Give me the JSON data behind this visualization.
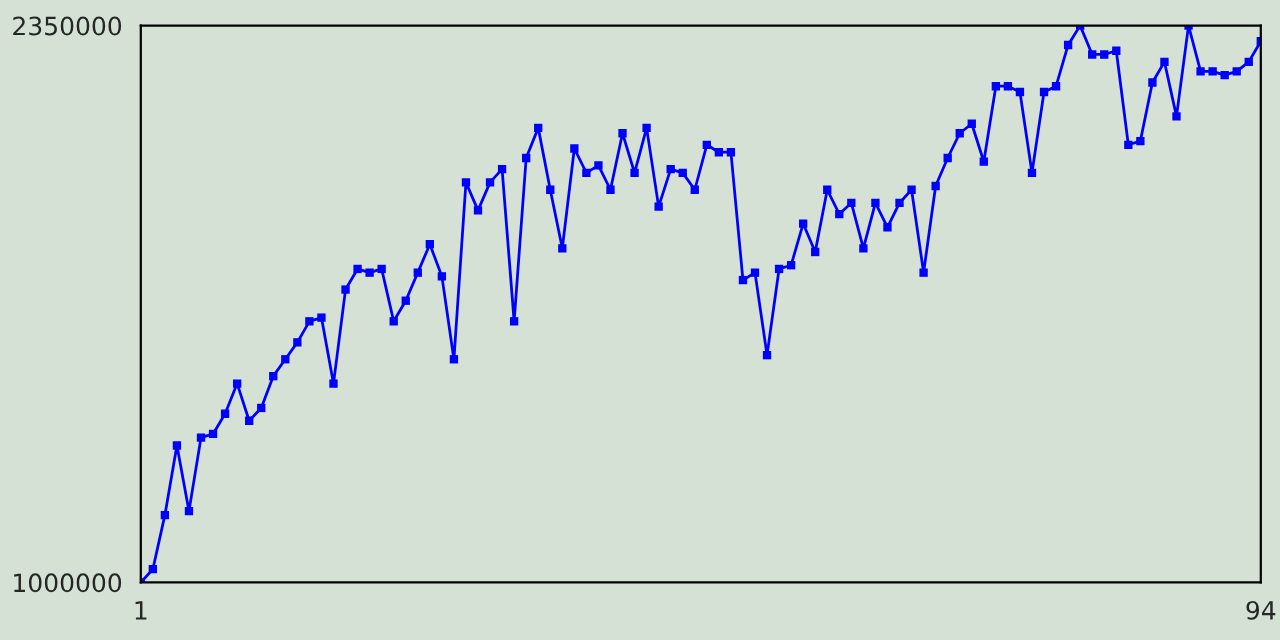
{
  "chart_data": {
    "type": "line",
    "x": [
      1,
      2,
      3,
      4,
      5,
      6,
      7,
      8,
      9,
      10,
      11,
      12,
      13,
      14,
      15,
      16,
      17,
      18,
      19,
      20,
      21,
      22,
      23,
      24,
      25,
      26,
      27,
      28,
      29,
      30,
      31,
      32,
      33,
      34,
      35,
      36,
      37,
      38,
      39,
      40,
      41,
      42,
      43,
      44,
      45,
      46,
      47,
      48,
      49,
      50,
      51,
      52,
      53,
      54,
      55,
      56,
      57,
      58,
      59,
      60,
      61,
      62,
      63,
      64,
      65,
      66,
      67,
      68,
      69,
      70,
      71,
      72,
      73,
      74,
      75,
      76,
      77,
      78,
      79,
      80,
      81,
      82,
      83,
      84,
      85,
      86,
      87,
      88,
      89,
      90,
      91,
      92,
      93,
      94
    ],
    "series": [
      {
        "color": "#0000ff",
        "values": [
          1000000,
          1032000,
          1163000,
          1332000,
          1173000,
          1351000,
          1360000,
          1409000,
          1482000,
          1392000,
          1423000,
          1500000,
          1541000,
          1582000,
          1633000,
          1642000,
          1482000,
          1710000,
          1760000,
          1751000,
          1760000,
          1633000,
          1683000,
          1751000,
          1820000,
          1742000,
          1541000,
          1970000,
          1902000,
          1970000,
          2002000,
          1633000,
          2029000,
          2102000,
          1952000,
          1810000,
          2052000,
          1993000,
          2011000,
          1952000,
          2089000,
          1993000,
          2102000,
          1911000,
          2002000,
          1993000,
          1952000,
          2061000,
          2043000,
          2043000,
          1733000,
          1751000,
          1551000,
          1760000,
          1769000,
          1870000,
          1801000,
          1952000,
          1893000,
          1920000,
          1810000,
          1920000,
          1861000,
          1920000,
          1952000,
          1751000,
          1961000,
          2029000,
          2089000,
          2112000,
          2020000,
          2203000,
          2203000,
          2189000,
          1993000,
          2189000,
          2203000,
          2303000,
          2350000,
          2280000,
          2280000,
          2289000,
          2061000,
          2070000,
          2212000,
          2262000,
          2130000,
          2350000,
          2239000,
          2239000,
          2230000,
          2239000,
          2262000,
          2312000
        ]
      }
    ],
    "xlim": [
      1,
      94
    ],
    "ylim": [
      1000000,
      2350000
    ],
    "xticks": [
      1,
      94
    ],
    "yticks": [
      1000000,
      2350000
    ],
    "marker": "square",
    "line_style": "solid"
  }
}
